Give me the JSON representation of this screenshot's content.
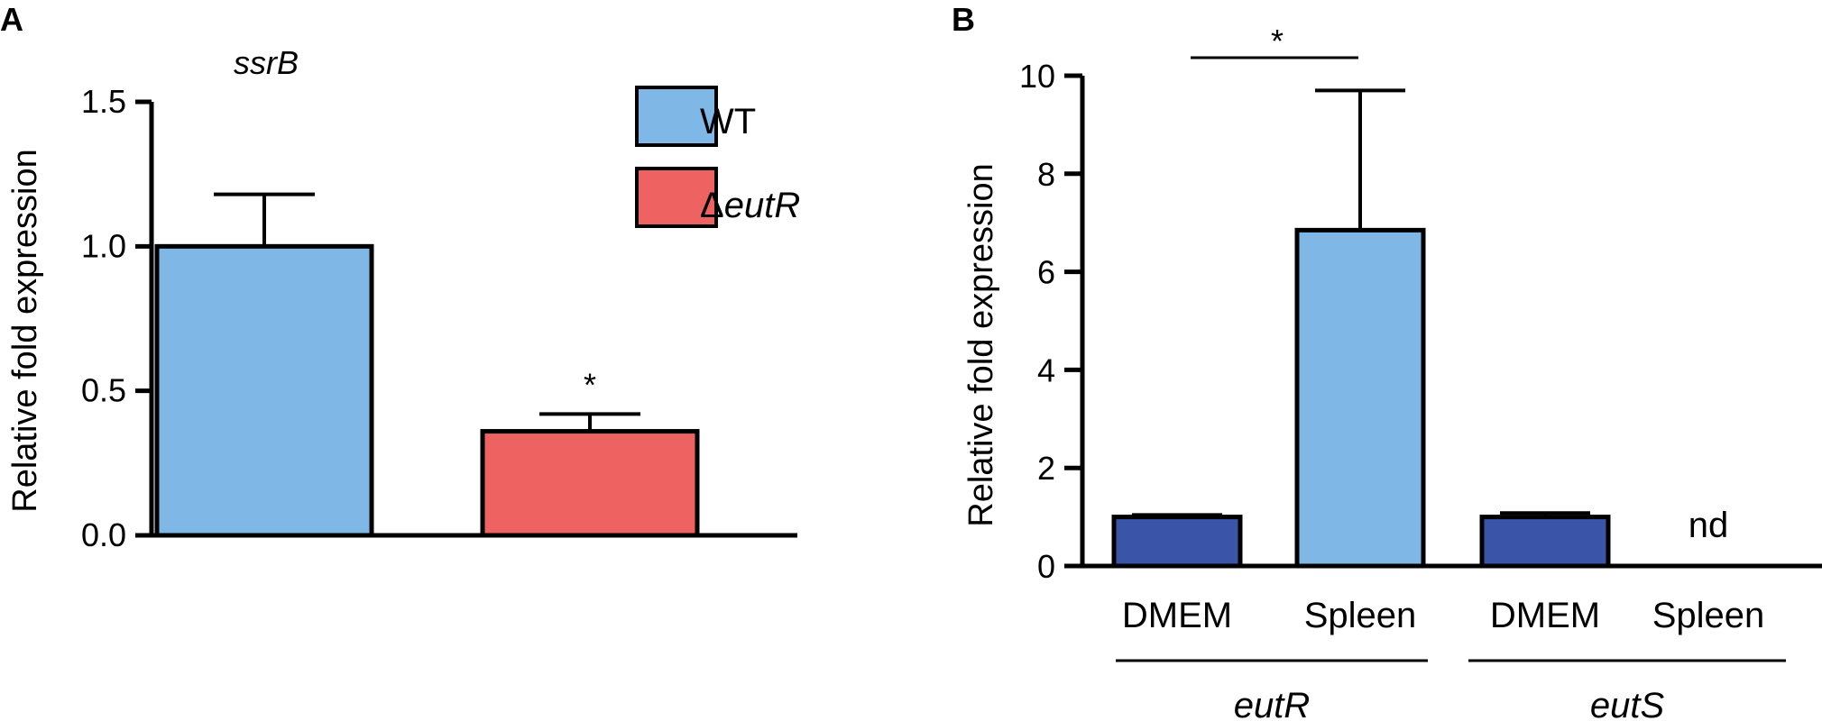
{
  "panels": {
    "a_label": "A",
    "b_label": "B"
  },
  "chart_data": [
    {
      "type": "bar",
      "panel": "A",
      "title": "ssrB",
      "ylabel": "Relative fold expression",
      "xlabel": "",
      "ylim": [
        0,
        1.5
      ],
      "yticks": [
        "0.0",
        "0.5",
        "1.0",
        "1.5"
      ],
      "categories": [
        "WT",
        "ΔeutR"
      ],
      "values": [
        1.0,
        0.36
      ],
      "errors": [
        0.18,
        0.06
      ],
      "colors": [
        "#7fb8e6",
        "#ef6262"
      ],
      "legend": {
        "placement": "top-right",
        "entries": [
          {
            "label": "WT",
            "color": "#7fb8e6"
          },
          {
            "symbol": "Δ",
            "label": "eutR",
            "color": "#ef6262"
          }
        ]
      },
      "annotations": [
        {
          "text": "*",
          "category": "ΔeutR"
        }
      ],
      "grid": false
    },
    {
      "type": "bar",
      "panel": "B",
      "ylabel": "Relative fold expression",
      "xlabel": "",
      "ylim": [
        0,
        10
      ],
      "yticks": [
        "0",
        "2",
        "4",
        "6",
        "8",
        "10"
      ],
      "groups": [
        {
          "name": "eutR",
          "categories": [
            "DMEM",
            "Spleen"
          ],
          "values": [
            1.0,
            6.85
          ],
          "errors": [
            0.04,
            2.85
          ],
          "colors": [
            "#3a55a8",
            "#7fb8e6"
          ],
          "notes": [
            "",
            ""
          ]
        },
        {
          "name": "eutS",
          "categories": [
            "DMEM",
            "Spleen"
          ],
          "values": [
            1.0,
            null
          ],
          "errors": [
            0.08,
            null
          ],
          "colors": [
            "#3a55a8",
            "#7fb8e6"
          ],
          "notes": [
            "",
            "nd"
          ]
        }
      ],
      "annotations": [
        {
          "text": "*",
          "between": [
            "eutR DMEM",
            "eutR Spleen"
          ]
        }
      ],
      "grid": false
    }
  ]
}
